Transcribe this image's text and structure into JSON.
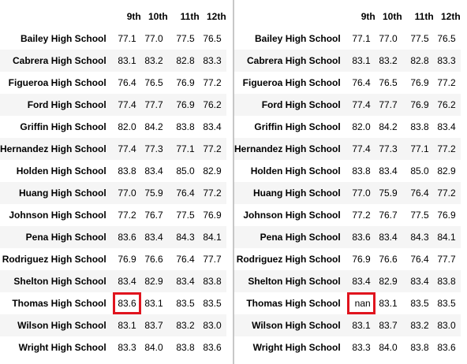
{
  "left_table": {
    "columns": [
      "9th",
      "10th",
      "11th",
      "12th"
    ],
    "rows": [
      {
        "school": "Bailey High School",
        "values": [
          "77.1",
          "77.0",
          "77.5",
          "76.5"
        ]
      },
      {
        "school": "Cabrera High School",
        "values": [
          "83.1",
          "83.2",
          "82.8",
          "83.3"
        ]
      },
      {
        "school": "Figueroa High School",
        "values": [
          "76.4",
          "76.5",
          "76.9",
          "77.2"
        ]
      },
      {
        "school": "Ford High School",
        "values": [
          "77.4",
          "77.7",
          "76.9",
          "76.2"
        ]
      },
      {
        "school": "Griffin High School",
        "values": [
          "82.0",
          "84.2",
          "83.8",
          "83.4"
        ]
      },
      {
        "school": "Hernandez High School",
        "values": [
          "77.4",
          "77.3",
          "77.1",
          "77.2"
        ]
      },
      {
        "school": "Holden High School",
        "values": [
          "83.8",
          "83.4",
          "85.0",
          "82.9"
        ]
      },
      {
        "school": "Huang High School",
        "values": [
          "77.0",
          "75.9",
          "76.4",
          "77.2"
        ]
      },
      {
        "school": "Johnson High School",
        "values": [
          "77.2",
          "76.7",
          "77.5",
          "76.9"
        ]
      },
      {
        "school": "Pena High School",
        "values": [
          "83.6",
          "83.4",
          "84.3",
          "84.1"
        ]
      },
      {
        "school": "Rodriguez High School",
        "values": [
          "76.9",
          "76.6",
          "76.4",
          "77.7"
        ]
      },
      {
        "school": "Shelton High School",
        "values": [
          "83.4",
          "82.9",
          "83.4",
          "83.8"
        ]
      },
      {
        "school": "Thomas High School",
        "values": [
          "83.6",
          "83.1",
          "83.5",
          "83.5"
        ]
      },
      {
        "school": "Wilson High School",
        "values": [
          "83.1",
          "83.7",
          "83.2",
          "83.0"
        ]
      },
      {
        "school": "Wright High School",
        "values": [
          "83.3",
          "84.0",
          "83.8",
          "83.6"
        ]
      }
    ]
  },
  "right_table": {
    "columns": [
      "9th",
      "10th",
      "11th",
      "12th"
    ],
    "rows": [
      {
        "school": "Bailey High School",
        "values": [
          "77.1",
          "77.0",
          "77.5",
          "76.5"
        ]
      },
      {
        "school": "Cabrera High School",
        "values": [
          "83.1",
          "83.2",
          "82.8",
          "83.3"
        ]
      },
      {
        "school": "Figueroa High School",
        "values": [
          "76.4",
          "76.5",
          "76.9",
          "77.2"
        ]
      },
      {
        "school": "Ford High School",
        "values": [
          "77.4",
          "77.7",
          "76.9",
          "76.2"
        ]
      },
      {
        "school": "Griffin High School",
        "values": [
          "82.0",
          "84.2",
          "83.8",
          "83.4"
        ]
      },
      {
        "school": "Hernandez High School",
        "values": [
          "77.4",
          "77.3",
          "77.1",
          "77.2"
        ]
      },
      {
        "school": "Holden High School",
        "values": [
          "83.8",
          "83.4",
          "85.0",
          "82.9"
        ]
      },
      {
        "school": "Huang High School",
        "values": [
          "77.0",
          "75.9",
          "76.4",
          "77.2"
        ]
      },
      {
        "school": "Johnson High School",
        "values": [
          "77.2",
          "76.7",
          "77.5",
          "76.9"
        ]
      },
      {
        "school": "Pena High School",
        "values": [
          "83.6",
          "83.4",
          "84.3",
          "84.1"
        ]
      },
      {
        "school": "Rodriguez High School",
        "values": [
          "76.9",
          "76.6",
          "76.4",
          "77.7"
        ]
      },
      {
        "school": "Shelton High School",
        "values": [
          "83.4",
          "82.9",
          "83.4",
          "83.8"
        ]
      },
      {
        "school": "Thomas High School",
        "values": [
          "nan",
          "83.1",
          "83.5",
          "83.5"
        ]
      },
      {
        "school": "Wilson High School",
        "values": [
          "83.1",
          "83.7",
          "83.2",
          "83.0"
        ]
      },
      {
        "school": "Wright High School",
        "values": [
          "83.3",
          "84.0",
          "83.8",
          "83.6"
        ]
      }
    ]
  },
  "highlight": {
    "color": "#e0141e",
    "row_school": "Thomas High School",
    "column": "9th"
  },
  "colors": {
    "stripe": "#f5f5f5",
    "divider": "#c7c7c7"
  }
}
